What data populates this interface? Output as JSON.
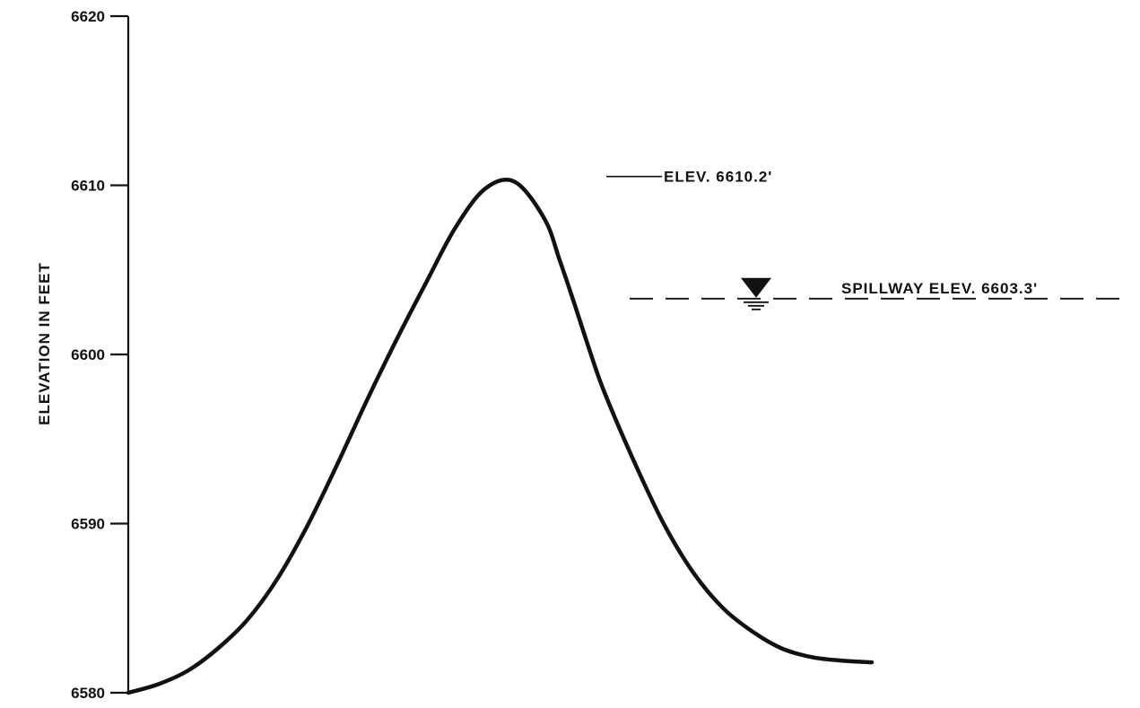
{
  "chart_data": {
    "type": "line",
    "title": "",
    "xlabel": "",
    "ylabel": "ELEVATION IN FEET",
    "ylim": [
      6580,
      6620
    ],
    "yticks": [
      6580,
      6590,
      6600,
      6610,
      6620
    ],
    "ytick_labels": [
      "6580",
      "6590",
      "6600",
      "6610",
      "6620"
    ],
    "xlim": [
      0,
      100
    ],
    "grid": false,
    "legend": "none",
    "color": "#111111",
    "series": [
      {
        "x": [
          0,
          4,
          8,
          12,
          16,
          20,
          24,
          28,
          32,
          36,
          40,
          44,
          48,
          52,
          56,
          58,
          60,
          62,
          64,
          68,
          72,
          76,
          80,
          84,
          88,
          92,
          96,
          100
        ],
        "y": [
          6580.0,
          6580.5,
          6581.3,
          6582.6,
          6584.3,
          6586.7,
          6589.8,
          6593.4,
          6597.2,
          6600.8,
          6604.2,
          6607.5,
          6609.8,
          6610.2,
          6608.0,
          6605.6,
          6603.0,
          6600.3,
          6597.8,
          6593.7,
          6590.0,
          6587.1,
          6585.0,
          6583.6,
          6582.6,
          6582.1,
          6581.9,
          6581.8
        ]
      }
    ],
    "annotations": [
      {
        "text": "ELEV. 6610.2'",
        "y": 6610.2,
        "kind": "leader"
      },
      {
        "text": "SPILLWAY ELEV. 6603.3'",
        "y": 6603.3,
        "kind": "water-level"
      }
    ]
  }
}
